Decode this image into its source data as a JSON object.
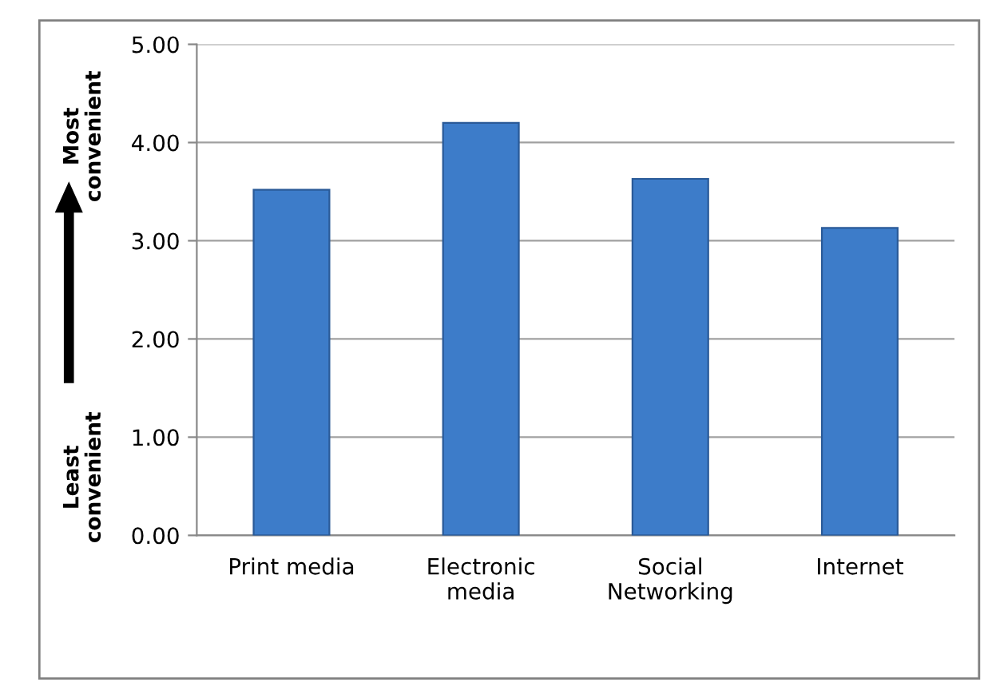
{
  "chart_data": {
    "type": "bar",
    "categories": [
      "Print media",
      "Electronic\nmedia",
      "Social\nNetworking",
      "Internet"
    ],
    "values": [
      3.52,
      4.2,
      3.63,
      3.13
    ],
    "color": "#3d7cc9",
    "ylim": [
      0,
      5
    ],
    "yticks": [
      {
        "value": 0,
        "label": "0.00"
      },
      {
        "value": 1,
        "label": "1.00"
      },
      {
        "value": 2,
        "label": "2.00"
      },
      {
        "value": 3,
        "label": "3.00"
      },
      {
        "value": 4,
        "label": "4.00"
      },
      {
        "value": 5,
        "label": "5.00"
      }
    ],
    "grid": "y",
    "annotations": [
      "Most\nconvenient",
      "Least\nconvenient"
    ]
  }
}
